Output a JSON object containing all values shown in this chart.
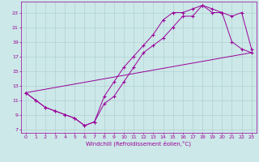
{
  "xlabel": "Windchill (Refroidissement éolien,°C)",
  "background_color": "#cce8e8",
  "grid_color": "#aacccc",
  "line_color": "#990099",
  "xlim": [
    -0.5,
    23.5
  ],
  "ylim": [
    6.5,
    24.5
  ],
  "xticks": [
    0,
    1,
    2,
    3,
    4,
    5,
    6,
    7,
    8,
    9,
    10,
    11,
    12,
    13,
    14,
    15,
    16,
    17,
    18,
    19,
    20,
    21,
    22,
    23
  ],
  "yticks": [
    7,
    9,
    11,
    13,
    15,
    17,
    19,
    21,
    23
  ],
  "line1_x": [
    0,
    1,
    2,
    3,
    4,
    5,
    6,
    7,
    8,
    9,
    10,
    11,
    12,
    13,
    14,
    15,
    16,
    17,
    18,
    19,
    20,
    21,
    22,
    23
  ],
  "line1_y": [
    12,
    11,
    10,
    9.5,
    9,
    8.5,
    7.5,
    8,
    10.5,
    11.5,
    13.5,
    15.5,
    17.5,
    18.5,
    19.5,
    21,
    22.5,
    22.5,
    24,
    23.5,
    23,
    22.5,
    23,
    18
  ],
  "line2_x": [
    0,
    1,
    2,
    3,
    4,
    5,
    6,
    7,
    8,
    9,
    10,
    11,
    12,
    13,
    14,
    15,
    16,
    17,
    18,
    19,
    20,
    21,
    22,
    23
  ],
  "line2_y": [
    12,
    11,
    10,
    9.5,
    9,
    8.5,
    7.5,
    8,
    11.5,
    13.5,
    15.5,
    17,
    18.5,
    20,
    22,
    23,
    23,
    23.5,
    24,
    23,
    23,
    19,
    18,
    17.5
  ],
  "line3_x": [
    0,
    23
  ],
  "line3_y": [
    12,
    17.5
  ]
}
